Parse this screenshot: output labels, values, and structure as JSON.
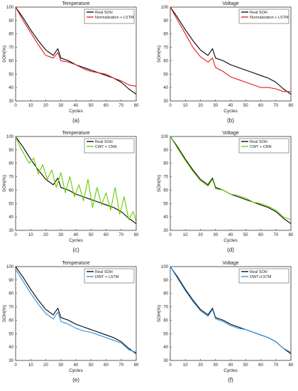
{
  "charts": [
    {
      "chart_data": {
        "type": "line",
        "title": "Temperature",
        "xlabel": "Cycles",
        "ylabel": "SOH(%)",
        "xlim": [
          0,
          80
        ],
        "ylim": [
          30,
          100
        ],
        "xticks": [
          0,
          10,
          20,
          30,
          40,
          50,
          60,
          70,
          80
        ],
        "yticks": [
          30,
          40,
          50,
          60,
          70,
          80,
          90,
          100
        ],
        "legend_position": "top-right",
        "series": [
          {
            "name": "Real SOH",
            "color": "#000000",
            "x": [
              0,
              5,
              10,
              15,
              20,
              25,
              28,
              30,
              35,
              40,
              45,
              50,
              55,
              60,
              65,
              70,
              75,
              80
            ],
            "y": [
              100,
              92,
              83,
              75,
              68,
              64,
              69,
              62,
              60,
              57,
              55,
              53,
              51,
              49,
              47,
              44,
              39,
              35
            ]
          },
          {
            "name": "Normalization + LSTM",
            "color": "#e41a1c",
            "x": [
              0,
              5,
              10,
              15,
              20,
              25,
              28,
              30,
              35,
              40,
              45,
              50,
              55,
              60,
              65,
              70,
              75,
              80
            ],
            "y": [
              100,
              90,
              81,
              72,
              64,
              62,
              66,
              60,
              59,
              57,
              54,
              52,
              51,
              50,
              47,
              45,
              42,
              41
            ]
          }
        ]
      },
      "caption": "(a)"
    },
    {
      "chart_data": {
        "type": "line",
        "title": "Voltage",
        "xlabel": "Cycles",
        "ylabel": "SOH(%)",
        "xlim": [
          0,
          80
        ],
        "ylim": [
          30,
          100
        ],
        "xticks": [
          0,
          10,
          20,
          30,
          40,
          50,
          60,
          70,
          80
        ],
        "yticks": [
          30,
          40,
          50,
          60,
          70,
          80,
          90,
          100
        ],
        "legend_position": "top-right",
        "series": [
          {
            "name": "Real SOH",
            "color": "#000000",
            "x": [
              0,
              5,
              10,
              15,
              20,
              25,
              28,
              30,
              35,
              40,
              45,
              50,
              55,
              60,
              65,
              70,
              75,
              80
            ],
            "y": [
              100,
              92,
              83,
              75,
              68,
              64,
              69,
              62,
              60,
              57,
              55,
              53,
              51,
              49,
              47,
              44,
              39,
              35
            ]
          },
          {
            "name": "Normalization + LSTM",
            "color": "#e41a1c",
            "x": [
              0,
              5,
              10,
              15,
              20,
              25,
              28,
              30,
              35,
              40,
              45,
              50,
              55,
              60,
              65,
              70,
              75,
              80
            ],
            "y": [
              100,
              90,
              80,
              70,
              63,
              59,
              62,
              55,
              52,
              48,
              46,
              44,
              42,
              40,
              40,
              39,
              37,
              37
            ]
          }
        ]
      },
      "caption": "(b)"
    },
    {
      "chart_data": {
        "type": "line",
        "title": "Temperature",
        "xlabel": "Cycles",
        "ylabel": "SOH(%)",
        "xlim": [
          0,
          80
        ],
        "ylim": [
          30,
          100
        ],
        "xticks": [
          0,
          10,
          20,
          30,
          40,
          50,
          60,
          70,
          80
        ],
        "yticks": [
          30,
          40,
          50,
          60,
          70,
          80,
          90,
          100
        ],
        "legend_position": "top-right",
        "series": [
          {
            "name": "Real SOH",
            "color": "#000000",
            "x": [
              0,
              5,
              10,
              15,
              20,
              25,
              28,
              30,
              35,
              40,
              45,
              50,
              55,
              60,
              65,
              70,
              75,
              80
            ],
            "y": [
              100,
              92,
              83,
              75,
              68,
              64,
              69,
              62,
              60,
              57,
              55,
              53,
              51,
              49,
              47,
              44,
              39,
              35
            ]
          },
          {
            "name": "CWT + CNN",
            "color": "#66cc00",
            "x": [
              0,
              3,
              6,
              9,
              12,
              15,
              18,
              21,
              24,
              27,
              30,
              33,
              36,
              39,
              42,
              45,
              48,
              51,
              54,
              57,
              60,
              63,
              66,
              69,
              72,
              75,
              78,
              80
            ],
            "y": [
              100,
              92,
              86,
              80,
              84,
              72,
              79,
              68,
              75,
              62,
              73,
              58,
              70,
              55,
              64,
              52,
              68,
              47,
              62,
              49,
              58,
              45,
              62,
              42,
              55,
              38,
              44,
              36
            ]
          }
        ]
      },
      "caption": "(c)"
    },
    {
      "chart_data": {
        "type": "line",
        "title": "Voltage",
        "xlabel": "Cycles",
        "ylabel": "SOH(%)",
        "xlim": [
          0,
          80
        ],
        "ylim": [
          30,
          100
        ],
        "xticks": [
          0,
          10,
          20,
          30,
          40,
          50,
          60,
          70,
          80
        ],
        "yticks": [
          30,
          40,
          50,
          60,
          70,
          80,
          90,
          100
        ],
        "legend_position": "top-right",
        "series": [
          {
            "name": "Real SOH",
            "color": "#000000",
            "x": [
              0,
              5,
              10,
              15,
              20,
              25,
              28,
              30,
              35,
              40,
              45,
              50,
              55,
              60,
              65,
              70,
              75,
              80
            ],
            "y": [
              100,
              92,
              83,
              75,
              68,
              64,
              69,
              62,
              60,
              57,
              55,
              53,
              51,
              49,
              47,
              44,
              39,
              35
            ]
          },
          {
            "name": "CWT + CNN",
            "color": "#66cc00",
            "x": [
              0,
              5,
              10,
              15,
              20,
              25,
              28,
              30,
              35,
              40,
              45,
              50,
              55,
              60,
              65,
              70,
              75,
              80
            ],
            "y": [
              100,
              91,
              82,
              74,
              67,
              63,
              68,
              61,
              60,
              57,
              56,
              54,
              51,
              50,
              48,
              45,
              40,
              38
            ]
          }
        ]
      },
      "caption": "(d)"
    },
    {
      "chart_data": {
        "type": "line",
        "title": "Temperature",
        "xlabel": "Cycles",
        "ylabel": "SOH(%)",
        "xlim": [
          0,
          80
        ],
        "ylim": [
          30,
          100
        ],
        "xticks": [
          0,
          10,
          20,
          30,
          40,
          50,
          60,
          70,
          80
        ],
        "yticks": [
          30,
          40,
          50,
          60,
          70,
          80,
          90,
          100
        ],
        "legend_position": "top-right",
        "series": [
          {
            "name": "Real SOH",
            "color": "#000000",
            "x": [
              0,
              5,
              10,
              15,
              20,
              25,
              28,
              30,
              35,
              40,
              45,
              50,
              55,
              60,
              65,
              70,
              75,
              80
            ],
            "y": [
              100,
              92,
              83,
              75,
              68,
              64,
              69,
              62,
              60,
              57,
              55,
              53,
              51,
              49,
              47,
              44,
              39,
              35
            ]
          },
          {
            "name": "DWT + LSTM",
            "color": "#2f8fd8",
            "x": [
              0,
              5,
              10,
              15,
              20,
              25,
              28,
              30,
              35,
              40,
              45,
              50,
              55,
              60,
              65,
              70,
              75,
              80
            ],
            "y": [
              98,
              89,
              80,
              72,
              65,
              61,
              66,
              59,
              57,
              54,
              52,
              51,
              49,
              47,
              45,
              43,
              38,
              36
            ]
          }
        ]
      },
      "caption": "(e)"
    },
    {
      "chart_data": {
        "type": "line",
        "title": "Voltage",
        "xlabel": "Cycles",
        "ylabel": "SOH(%)",
        "xlim": [
          0,
          80
        ],
        "ylim": [
          30,
          100
        ],
        "xticks": [
          0,
          10,
          20,
          30,
          40,
          50,
          60,
          70,
          80
        ],
        "yticks": [
          30,
          40,
          50,
          60,
          70,
          80,
          90,
          100
        ],
        "legend_position": "top-right",
        "series": [
          {
            "name": "Real SOH",
            "color": "#000000",
            "x": [
              0,
              5,
              10,
              15,
              20,
              25,
              28,
              30,
              35,
              40,
              45,
              50,
              55,
              60,
              65,
              70,
              75,
              80
            ],
            "y": [
              100,
              92,
              83,
              75,
              68,
              64,
              69,
              62,
              60,
              57,
              55,
              53,
              51,
              49,
              47,
              44,
              39,
              35
            ]
          },
          {
            "name": "DWT+LSTM",
            "color": "#2f8fd8",
            "x": [
              0,
              5,
              10,
              15,
              20,
              25,
              28,
              30,
              35,
              40,
              45,
              50,
              55,
              60,
              65,
              70,
              75,
              80
            ],
            "y": [
              100,
              91,
              82,
              74,
              67,
              63,
              68,
              61,
              59,
              56,
              54,
              53,
              51,
              49,
              47,
              44,
              39,
              36
            ]
          }
        ]
      },
      "caption": "(f)"
    }
  ]
}
